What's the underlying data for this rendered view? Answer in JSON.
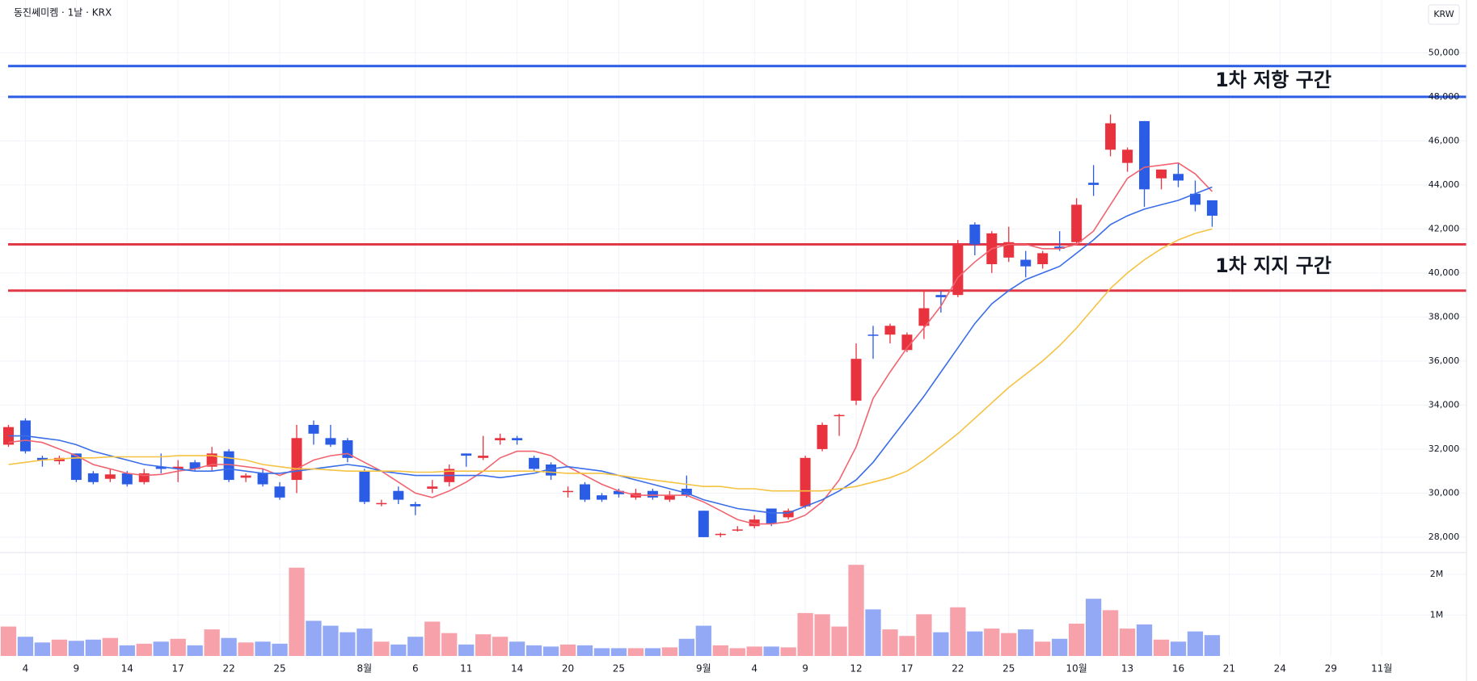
{
  "chart_data": {
    "type": "candlestick",
    "title": "동진쎄미켐 · 1날 · KRX",
    "currency": "KRW",
    "open": [
      32200,
      33300,
      31600,
      31450,
      31800,
      30900,
      30650,
      30900,
      30500,
      31200,
      31100,
      31400,
      31200,
      31900,
      30700,
      30900,
      30300,
      30600,
      33100,
      32500,
      32400,
      31000,
      29500,
      30100,
      29500,
      30200,
      30500,
      31800,
      31600,
      32400,
      32500,
      31600,
      31300,
      30050,
      30400,
      29900,
      30100,
      29800,
      30100,
      29700,
      30200,
      29200,
      28100,
      28300,
      28500,
      29300,
      28900,
      29400,
      32000,
      33500,
      34200,
      37200,
      37200,
      36500,
      37600,
      39000,
      39000,
      42200,
      40400,
      40700,
      40600,
      40400,
      41200,
      41400,
      44100,
      45600,
      45000,
      46900,
      44300,
      44500,
      43600,
      43300
    ],
    "high": [
      33100,
      33400,
      31700,
      31700,
      31800,
      31000,
      31100,
      31000,
      31100,
      31800,
      31500,
      31500,
      32100,
      32000,
      30900,
      31100,
      30500,
      33100,
      33300,
      33100,
      32500,
      31100,
      29700,
      30300,
      29600,
      30600,
      31300,
      31800,
      32600,
      32700,
      32600,
      31700,
      31400,
      30300,
      30500,
      30000,
      30200,
      30200,
      30200,
      30100,
      30800,
      29200,
      28200,
      28500,
      29000,
      29300,
      29300,
      31700,
      33200,
      33600,
      36800,
      37600,
      37700,
      37300,
      39200,
      39200,
      41500,
      42300,
      41900,
      42100,
      41000,
      41000,
      41900,
      43400,
      44900,
      47200,
      45700,
      46900,
      44700,
      45000,
      44200,
      43300
    ],
    "low": [
      32100,
      31800,
      31200,
      31300,
      30500,
      30400,
      30500,
      30300,
      30400,
      30900,
      30500,
      31000,
      31000,
      30500,
      30500,
      30300,
      29700,
      30000,
      32200,
      32100,
      31400,
      29500,
      29400,
      29500,
      29000,
      30000,
      30300,
      31200,
      31500,
      32200,
      32200,
      31000,
      30600,
      29800,
      29600,
      29600,
      29800,
      29700,
      29700,
      29600,
      29800,
      28000,
      28000,
      28250,
      28400,
      28500,
      28800,
      29300,
      31900,
      32600,
      34000,
      36100,
      36800,
      36400,
      37000,
      38200,
      38900,
      40800,
      40000,
      40500,
      39800,
      40200,
      41000,
      41300,
      43500,
      45300,
      44600,
      43000,
      43800,
      43900,
      42800,
      42100
    ],
    "close": [
      33000,
      31900,
      31500,
      31600,
      30600,
      30500,
      30850,
      30400,
      30900,
      31100,
      31200,
      31100,
      31800,
      30600,
      30800,
      30400,
      29800,
      32500,
      32700,
      32200,
      31600,
      29600,
      29550,
      29700,
      29400,
      30300,
      31100,
      31700,
      31700,
      32500,
      32400,
      31100,
      30800,
      30100,
      29700,
      29700,
      29950,
      30000,
      29800,
      29900,
      29900,
      28000,
      28150,
      28350,
      28800,
      28600,
      29200,
      31600,
      33100,
      33550,
      36100,
      37150,
      37600,
      37200,
      38400,
      38900,
      41300,
      41300,
      41800,
      41400,
      40300,
      40900,
      41100,
      43100,
      44000,
      46800,
      45600,
      43800,
      44700,
      44200,
      43100,
      42600
    ],
    "up_color": "#e8333f",
    "down_color": "#2a5ce6",
    "volume": [
      720000,
      470000,
      330000,
      400000,
      370000,
      400000,
      440000,
      260000,
      300000,
      350000,
      420000,
      260000,
      650000,
      440000,
      330000,
      350000,
      300000,
      2160000,
      860000,
      740000,
      580000,
      670000,
      350000,
      280000,
      470000,
      840000,
      560000,
      280000,
      530000,
      470000,
      350000,
      260000,
      230000,
      280000,
      260000,
      190000,
      190000,
      190000,
      190000,
      210000,
      420000,
      740000,
      260000,
      190000,
      230000,
      230000,
      210000,
      1050000,
      1020000,
      720000,
      2230000,
      1140000,
      650000,
      490000,
      1020000,
      580000,
      1190000,
      600000,
      670000,
      560000,
      650000,
      350000,
      420000,
      790000,
      1400000,
      1120000,
      670000,
      770000,
      400000,
      350000,
      600000,
      510000
    ],
    "volume_up_color": "#f7a1ab",
    "volume_down_color": "#93a9f5",
    "moving_averages": [
      {
        "color": "#f06470",
        "values": [
          32300,
          32400,
          32300,
          32000,
          31700,
          31300,
          31100,
          30900,
          30800,
          30850,
          31000,
          31100,
          31300,
          31300,
          31200,
          31100,
          30800,
          31100,
          31500,
          31700,
          31800,
          31400,
          31000,
          30500,
          30000,
          29800,
          30100,
          30500,
          31000,
          31600,
          31900,
          31900,
          31700,
          31200,
          30800,
          30400,
          30100,
          29900,
          29900,
          29900,
          29900,
          29600,
          29200,
          28800,
          28600,
          28600,
          28700,
          29000,
          29600,
          30600,
          32100,
          34300,
          35500,
          36600,
          37500,
          38500,
          39800,
          40500,
          41100,
          41300,
          41300,
          41100,
          41100,
          41300,
          41900,
          43100,
          44300,
          44800,
          44900,
          45000,
          44500,
          43700
        ]
      },
      {
        "color": "#3a6ee8",
        "values": [
          32600,
          32600,
          32500,
          32400,
          32200,
          31900,
          31700,
          31500,
          31300,
          31200,
          31100,
          31000,
          31000,
          31100,
          31000,
          30900,
          30900,
          31000,
          31100,
          31200,
          31300,
          31200,
          31000,
          30900,
          30800,
          30800,
          30800,
          30800,
          30800,
          30700,
          30800,
          30900,
          31100,
          31200,
          31100,
          31000,
          30800,
          30600,
          30400,
          30200,
          30000,
          29700,
          29500,
          29300,
          29200,
          29100,
          29100,
          29400,
          29700,
          30100,
          30600,
          31400,
          32400,
          33400,
          34400,
          35500,
          36600,
          37700,
          38600,
          39200,
          39700,
          40000,
          40300,
          40900,
          41500,
          42200,
          42600,
          42900,
          43100,
          43300,
          43600,
          43900
        ]
      },
      {
        "color": "#f5c242",
        "values": [
          31300,
          31400,
          31500,
          31550,
          31600,
          31600,
          31650,
          31650,
          31650,
          31650,
          31700,
          31700,
          31700,
          31600,
          31500,
          31300,
          31200,
          31100,
          31100,
          31050,
          31000,
          31000,
          31000,
          31000,
          30950,
          30950,
          31000,
          31000,
          31000,
          31000,
          31000,
          31000,
          30950,
          30900,
          30900,
          30900,
          30800,
          30700,
          30600,
          30500,
          30400,
          30300,
          30300,
          30200,
          30200,
          30100,
          30100,
          30100,
          30100,
          30200,
          30300,
          30500,
          30700,
          31000,
          31500,
          32100,
          32700,
          33400,
          34100,
          34800,
          35400,
          36000,
          36700,
          37500,
          38400,
          39300,
          40000,
          40600,
          41100,
          41500,
          41800,
          42000
        ]
      }
    ],
    "hlines": [
      {
        "value": 49400,
        "color": "#2a5ce6"
      },
      {
        "value": 48000,
        "color": "#2a5ce6"
      },
      {
        "value": 41300,
        "color": "#e03a48"
      },
      {
        "value": 39200,
        "color": "#e03a48"
      }
    ],
    "annotations": [
      {
        "text": "1차 저항 구간",
        "color": "#2a5ce6"
      },
      {
        "text": "1차 지지 구간",
        "color": "#e03a48"
      }
    ],
    "xlim": [
      -0.5,
      86
    ],
    "xticks": [
      {
        "value": 1,
        "label": "4"
      },
      {
        "value": 4,
        "label": "9"
      },
      {
        "value": 7,
        "label": "14"
      },
      {
        "value": 10,
        "label": "17"
      },
      {
        "value": 13,
        "label": "22"
      },
      {
        "value": 16,
        "label": "25"
      },
      {
        "value": 21,
        "label": "8월"
      },
      {
        "value": 24,
        "label": "6"
      },
      {
        "value": 27,
        "label": "11"
      },
      {
        "value": 30,
        "label": "14"
      },
      {
        "value": 33,
        "label": "20"
      },
      {
        "value": 36,
        "label": "25"
      },
      {
        "value": 41,
        "label": "9월"
      },
      {
        "value": 44,
        "label": "4"
      },
      {
        "value": 47,
        "label": "9"
      },
      {
        "value": 50,
        "label": "12"
      },
      {
        "value": 53,
        "label": "17"
      },
      {
        "value": 56,
        "label": "22"
      },
      {
        "value": 59,
        "label": "25"
      },
      {
        "value": 63,
        "label": "10월"
      },
      {
        "value": 66,
        "label": "13"
      },
      {
        "value": 69,
        "label": "16"
      },
      {
        "value": 72,
        "label": "21"
      },
      {
        "value": 75,
        "label": "24"
      },
      {
        "value": 78,
        "label": "29"
      },
      {
        "value": 81,
        "label": "11월"
      }
    ],
    "ylim": [
      27300,
      52400
    ],
    "yticks": [
      {
        "value": 28000,
        "label": "28,000"
      },
      {
        "value": 30000,
        "label": "30,000"
      },
      {
        "value": 32000,
        "label": "32,000"
      },
      {
        "value": 34000,
        "label": "34,000"
      },
      {
        "value": 36000,
        "label": "36,000"
      },
      {
        "value": 38000,
        "label": "38,000"
      },
      {
        "value": 40000,
        "label": "40,000"
      },
      {
        "value": 42000,
        "label": "42,000"
      },
      {
        "value": 44000,
        "label": "44,000"
      },
      {
        "value": 46000,
        "label": "46,000"
      },
      {
        "value": 48000,
        "label": "48,000"
      },
      {
        "value": 50000,
        "label": "50,000"
      }
    ],
    "volume_lim": [
      0,
      2530000
    ],
    "volume_ticks": [
      {
        "value": 1000000,
        "label": "1M"
      },
      {
        "value": 2000000,
        "label": "2M"
      }
    ],
    "grid": true
  }
}
